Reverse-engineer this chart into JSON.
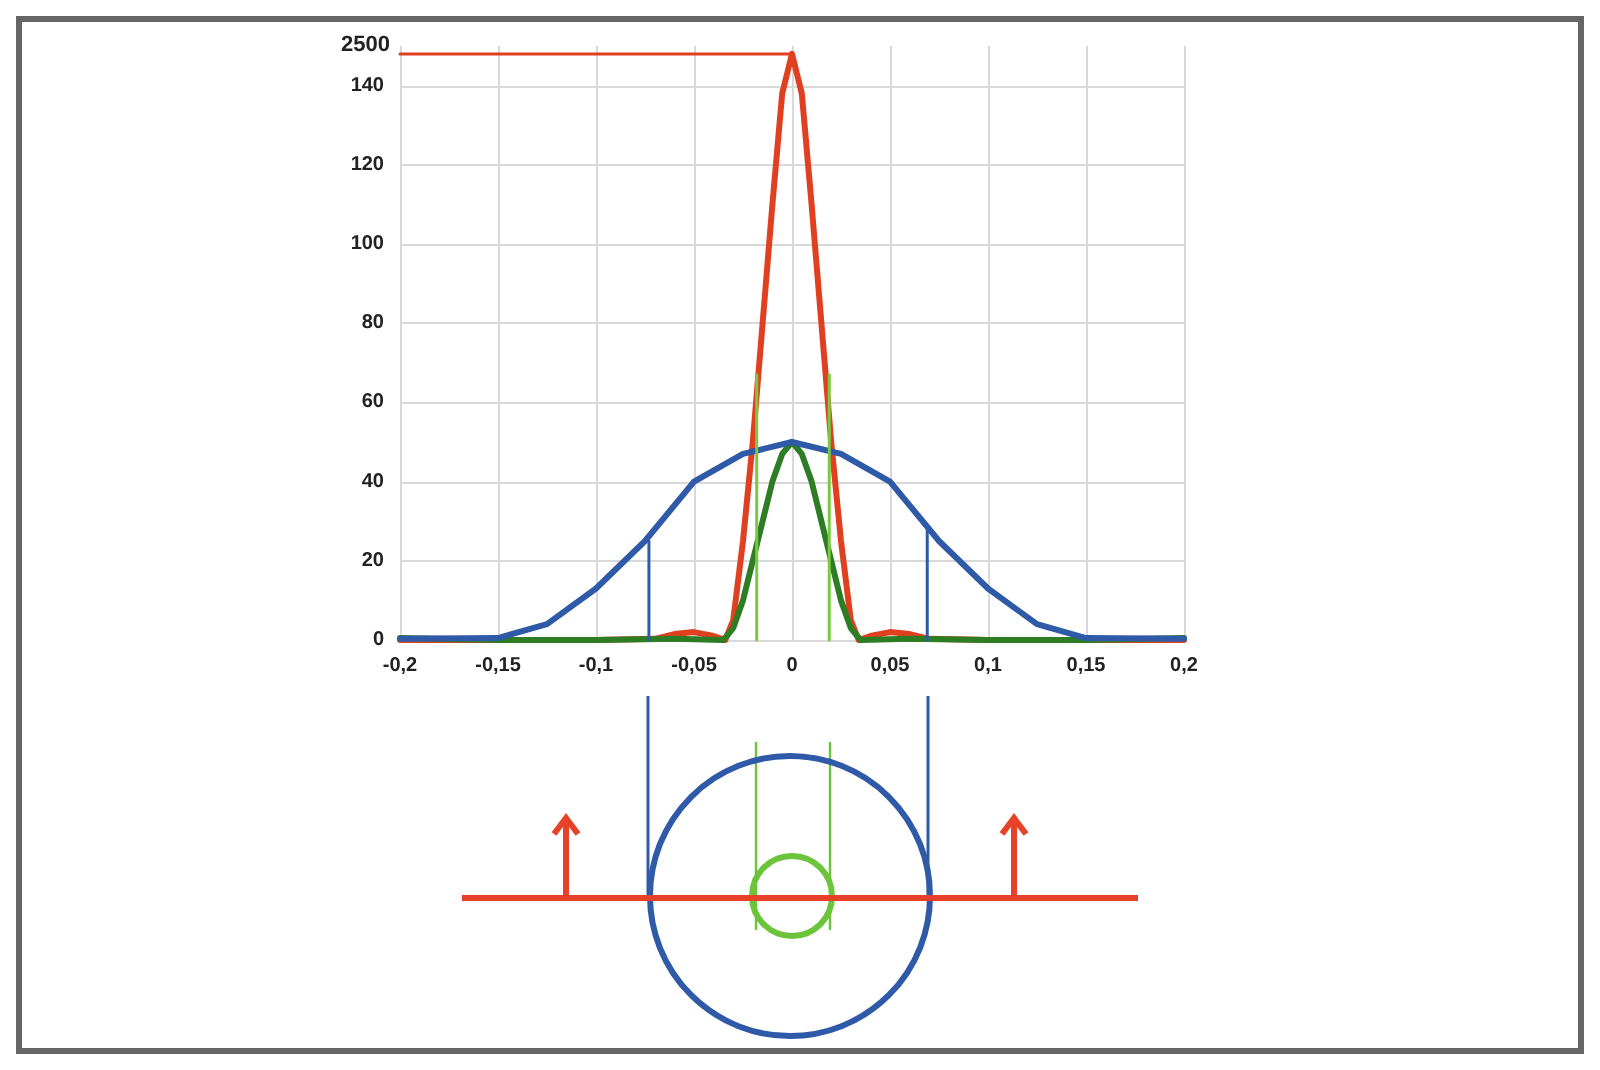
{
  "chart_data": {
    "type": "line",
    "xlim": [
      -0.2,
      0.2
    ],
    "xticks": [
      {
        "value": -0.2,
        "label": "-0,2"
      },
      {
        "value": -0.15,
        "label": "-0,15"
      },
      {
        "value": -0.1,
        "label": "-0,1"
      },
      {
        "value": -0.05,
        "label": "-0,05"
      },
      0,
      {
        "value": 0.05,
        "label": "0,05"
      },
      {
        "value": 0.1,
        "label": "0,1"
      },
      {
        "value": 0.15,
        "label": "0,15"
      },
      {
        "value": 0.2,
        "label": "0,2"
      }
    ],
    "ylim": [
      0,
      150
    ],
    "yticks": [
      0,
      20,
      40,
      60,
      80,
      100,
      120,
      140
    ],
    "annotations": [
      "2500"
    ],
    "grid": true,
    "marker": "none",
    "series": [
      {
        "color": "#e0401f",
        "x": [
          -0.2,
          -0.1,
          -0.07,
          -0.06,
          -0.05,
          -0.04,
          -0.034,
          -0.03,
          -0.025,
          -0.02,
          -0.016,
          -0.01,
          -0.005,
          0,
          0.005,
          0.01,
          0.016,
          0.02,
          0.025,
          0.03,
          0.034,
          0.04,
          0.05,
          0.06,
          0.07,
          0.1,
          0.2
        ],
        "values": [
          0,
          0,
          0.3,
          1.5,
          2,
          1,
          0,
          5,
          25,
          50,
          74,
          110,
          138,
          148,
          138,
          110,
          74,
          50,
          25,
          5,
          0,
          1,
          2,
          1.5,
          0.3,
          0,
          0
        ]
      },
      {
        "color": "#2e7d24",
        "x": [
          -0.2,
          -0.15,
          -0.1,
          -0.06,
          -0.035,
          -0.03,
          -0.025,
          -0.02,
          -0.015,
          -0.01,
          -0.005,
          0,
          0.005,
          0.01,
          0.015,
          0.02,
          0.025,
          0.03,
          0.035,
          0.06,
          0.1,
          0.15,
          0.2
        ],
        "values": [
          0.5,
          0,
          0,
          0.3,
          0,
          3,
          10,
          20,
          30,
          40,
          47,
          50,
          47,
          40,
          30,
          20,
          10,
          3,
          0,
          0.3,
          0,
          0,
          0.5
        ]
      },
      {
        "color": "#2f5aa8",
        "x": [
          -0.2,
          -0.15,
          -0.125,
          -0.1,
          -0.075,
          -0.05,
          -0.025,
          0,
          0.025,
          0.05,
          0.075,
          0.1,
          0.125,
          0.15,
          0.2
        ],
        "values": [
          0.3,
          0.5,
          4,
          13,
          25,
          40,
          47,
          50,
          47,
          40,
          25,
          13,
          4,
          0.5,
          0.3
        ]
      },
      {
        "color": "#e0401f",
        "x": [
          -0.2,
          0
        ],
        "values": [
          148,
          148
        ]
      },
      {
        "color": "#2f5aa8",
        "x": [
          -0.073,
          -0.073
        ],
        "values": [
          25,
          0
        ]
      },
      {
        "color": "#2f5aa8",
        "x": [
          0.069,
          0.069
        ],
        "values": [
          29,
          0
        ]
      },
      {
        "color": "#7ac943",
        "x": [
          -0.018,
          -0.018
        ],
        "values": [
          67,
          0
        ]
      },
      {
        "color": "#7ac943",
        "x": [
          0.019,
          0.019
        ],
        "values": [
          67,
          0
        ]
      }
    ]
  }
}
